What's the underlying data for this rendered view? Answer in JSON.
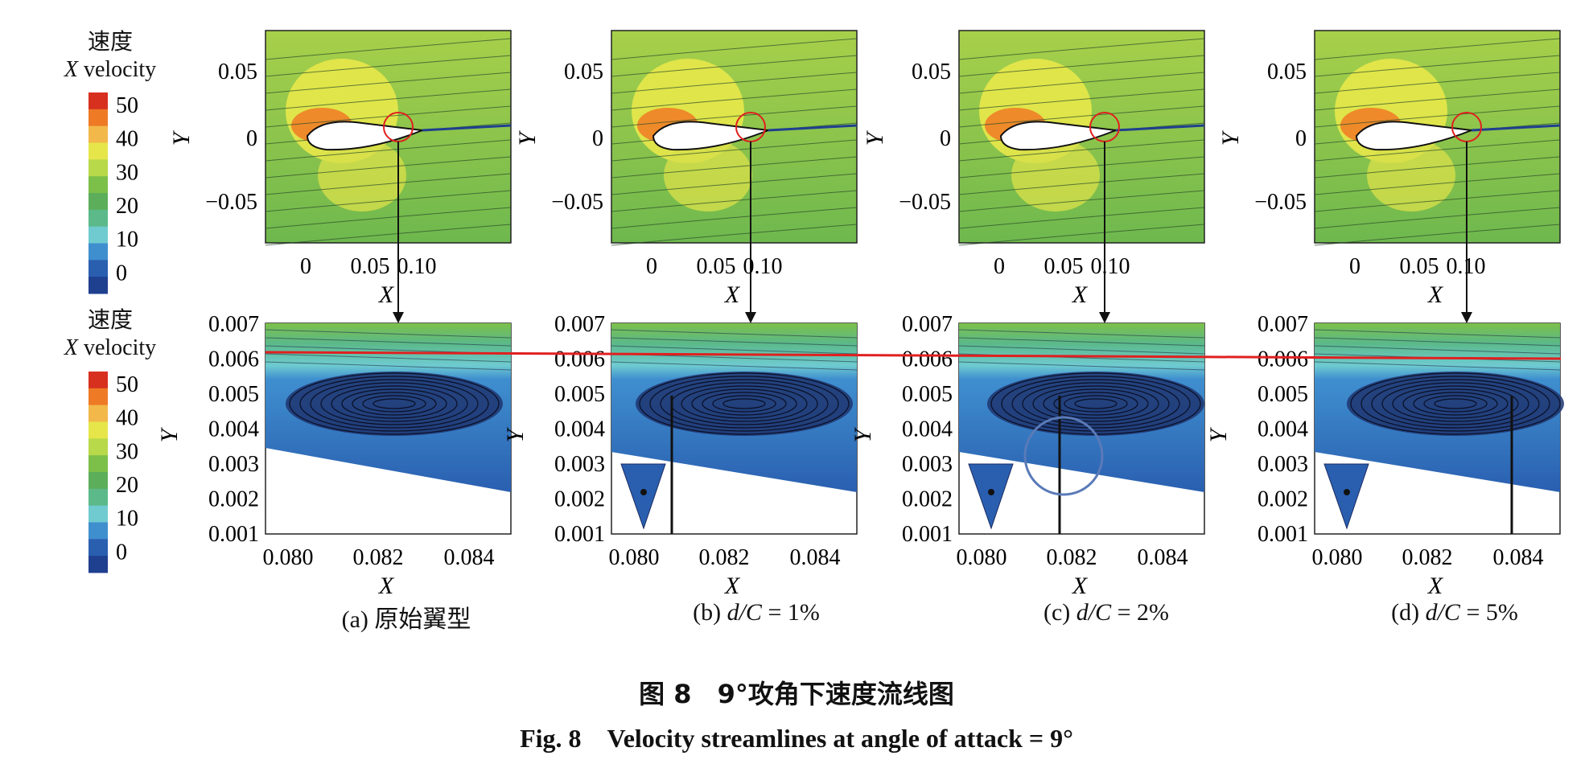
{
  "legend": {
    "title_cn": "速度",
    "title_en_var": "X",
    "title_en_word": " velocity",
    "ticks": [
      "50",
      "40",
      "30",
      "20",
      "10",
      "0"
    ],
    "colors": [
      "#d7301f",
      "#ee7a26",
      "#f2b84a",
      "#e6e64a",
      "#b8d94a",
      "#7cc04a",
      "#5cae5a",
      "#5bb98a",
      "#6fcbd0",
      "#3f8fcf",
      "#2a5fb0",
      "#1f3f8f"
    ]
  },
  "panels": [
    {
      "id": "a",
      "caption_prefix": "(a) ",
      "caption_main": "原始翼型",
      "caption_suffix": ""
    },
    {
      "id": "b",
      "caption_prefix": "(b) ",
      "caption_main": "d/C",
      "caption_suffix": " = 1%"
    },
    {
      "id": "c",
      "caption_prefix": "(c) ",
      "caption_main": "d/C",
      "caption_suffix": " = 2%"
    },
    {
      "id": "d",
      "caption_prefix": "(d) ",
      "caption_main": "d/C",
      "caption_suffix": " = 5%"
    }
  ],
  "top_axes": {
    "xticks": [
      "0",
      "0.05",
      "0.10"
    ],
    "yticks": [
      "0.05",
      "0",
      "−0.05"
    ],
    "xlabel": "X",
    "ylabel": "Y"
  },
  "bottom_axes": {
    "xticks": [
      "0.080",
      "0.082",
      "0.084"
    ],
    "yticks": [
      "0.007",
      "0.006",
      "0.005",
      "0.004",
      "0.003",
      "0.002",
      "0.001"
    ],
    "xlabel": "X",
    "ylabel": "Y"
  },
  "figure": {
    "title_cn": "图 8　9°攻角下速度流线图",
    "title_en": "Fig. 8　Velocity streamlines at angle of attack = 9°"
  }
}
